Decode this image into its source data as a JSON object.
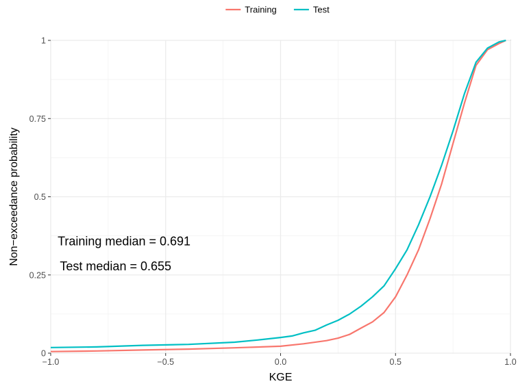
{
  "chart_data": {
    "type": "line",
    "xlabel": "KGE",
    "ylabel": "Non−exceedance probability",
    "xlim": [
      -1.0,
      1.0
    ],
    "ylim": [
      0,
      1
    ],
    "x_ticks": [
      -1.0,
      -0.5,
      0.0,
      0.5,
      1.0
    ],
    "x_tick_labels": [
      "−1.0",
      "−0.5",
      "0.0",
      "0.5",
      "1.0"
    ],
    "y_ticks": [
      0,
      0.25,
      0.5,
      0.75,
      1
    ],
    "y_tick_labels": [
      "0",
      "0.25",
      "0.5",
      "0.75",
      "1"
    ],
    "grid": true,
    "legend_position": "top",
    "series": [
      {
        "name": "Training",
        "color": "#F8766D",
        "x": [
          -1.0,
          -0.8,
          -0.6,
          -0.4,
          -0.2,
          0.0,
          0.1,
          0.2,
          0.25,
          0.3,
          0.35,
          0.4,
          0.45,
          0.5,
          0.55,
          0.6,
          0.65,
          0.7,
          0.75,
          0.8,
          0.85,
          0.9,
          0.95,
          0.98
        ],
        "y": [
          0.005,
          0.007,
          0.01,
          0.013,
          0.017,
          0.022,
          0.03,
          0.04,
          0.048,
          0.06,
          0.08,
          0.1,
          0.13,
          0.18,
          0.25,
          0.33,
          0.43,
          0.54,
          0.67,
          0.8,
          0.92,
          0.97,
          0.99,
          1.0
        ]
      },
      {
        "name": "Test",
        "color": "#00BFC4",
        "x": [
          -1.0,
          -0.8,
          -0.6,
          -0.4,
          -0.2,
          -0.1,
          0.0,
          0.05,
          0.1,
          0.15,
          0.2,
          0.25,
          0.3,
          0.35,
          0.4,
          0.45,
          0.5,
          0.55,
          0.6,
          0.65,
          0.7,
          0.75,
          0.8,
          0.85,
          0.9,
          0.95,
          0.98
        ],
        "y": [
          0.018,
          0.02,
          0.025,
          0.028,
          0.035,
          0.042,
          0.05,
          0.055,
          0.065,
          0.073,
          0.09,
          0.105,
          0.125,
          0.15,
          0.18,
          0.215,
          0.27,
          0.33,
          0.41,
          0.5,
          0.6,
          0.71,
          0.83,
          0.93,
          0.975,
          0.995,
          1.0
        ]
      }
    ],
    "annotations": [
      {
        "text": "Training median = 0.691",
        "x": -0.97,
        "y": 0.345
      },
      {
        "text": "Test median = 0.655",
        "x": -0.96,
        "y": 0.265
      }
    ]
  }
}
